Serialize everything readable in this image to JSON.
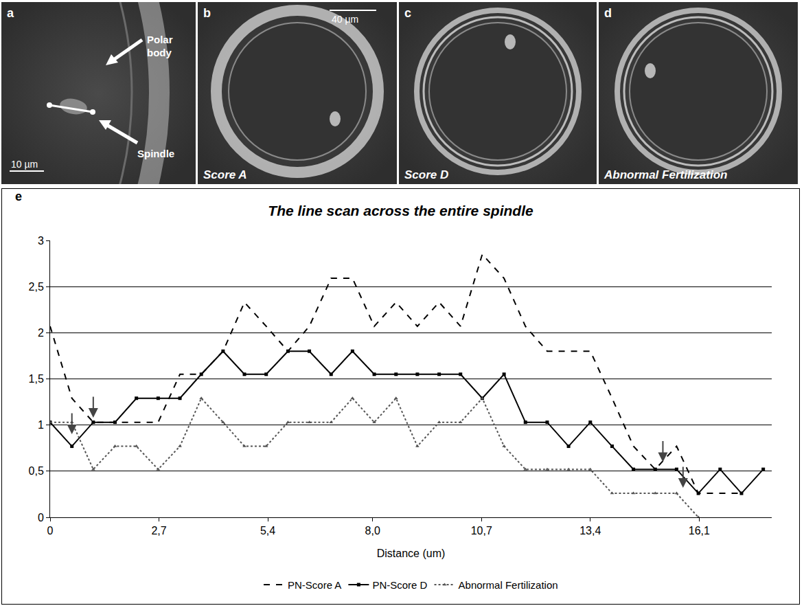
{
  "figure": {
    "panels": [
      {
        "letter": "a",
        "labels": [
          "Polar body",
          "Spindle"
        ],
        "scale_bar": "10 µm"
      },
      {
        "letter": "b",
        "caption": "Score A",
        "scale_bar": "40 µm"
      },
      {
        "letter": "c",
        "caption": "Score D"
      },
      {
        "letter": "d",
        "caption": "Abnormal Fertilization"
      }
    ],
    "chart_letter": "e"
  },
  "chart_data": {
    "type": "line",
    "title": "The line scan across the entire spindle",
    "x_label": "Distance (um)",
    "x": [
      0,
      0.54,
      1.07,
      1.61,
      2.14,
      2.68,
      3.22,
      3.75,
      4.29,
      4.82,
      5.36,
      5.9,
      6.43,
      6.97,
      7.5,
      8.04,
      8.58,
      9.11,
      9.65,
      10.18,
      10.72,
      11.26,
      11.79,
      12.33,
      12.86,
      13.4,
      13.94,
      14.47,
      15.01,
      15.54,
      16.08,
      16.62,
      17.15,
      17.69
    ],
    "series": [
      {
        "name": "PN-Score A",
        "color": "#000000",
        "line_style": "dash",
        "marker": "none",
        "values": [
          2.07,
          1.29,
          1.03,
          1.03,
          1.03,
          1.03,
          1.55,
          1.55,
          1.8,
          2.33,
          2.07,
          1.8,
          2.07,
          2.59,
          2.59,
          2.07,
          2.33,
          2.07,
          2.33,
          2.07,
          2.85,
          2.59,
          2.07,
          1.8,
          1.8,
          1.8,
          1.29,
          0.77,
          0.52,
          0.77,
          0.26,
          0.26,
          0.26,
          null
        ]
      },
      {
        "name": "PN-Score D",
        "color": "#000000",
        "line_style": "solid",
        "marker": "square",
        "values": [
          1.03,
          0.77,
          1.03,
          1.03,
          1.29,
          1.29,
          1.29,
          1.55,
          1.8,
          1.55,
          1.55,
          1.8,
          1.8,
          1.55,
          1.8,
          1.55,
          1.55,
          1.55,
          1.55,
          1.55,
          1.29,
          1.55,
          1.03,
          1.03,
          0.77,
          1.03,
          0.77,
          0.52,
          0.52,
          0.52,
          0.26,
          0.52,
          0.26,
          0.52
        ]
      },
      {
        "name": "Abnormal Fertilization",
        "color": "#555555",
        "line_style": "dot",
        "marker": "triangle-up",
        "values": [
          1.03,
          1.03,
          0.52,
          0.77,
          0.77,
          0.52,
          0.77,
          1.29,
          1.03,
          0.77,
          0.77,
          1.03,
          1.03,
          1.03,
          1.29,
          1.03,
          1.29,
          0.77,
          1.03,
          1.03,
          1.29,
          0.77,
          0.52,
          0.52,
          0.52,
          0.52,
          0.26,
          0.26,
          0.26,
          0.26,
          0,
          null,
          null,
          null
        ]
      }
    ],
    "arrows": [
      {
        "x": 0.54,
        "y": 0.9
      },
      {
        "x": 1.07,
        "y": 1.08
      },
      {
        "x": 15.2,
        "y": 0.6
      },
      {
        "x": 15.7,
        "y": 0.32
      }
    ],
    "xlim": [
      0,
      17.9
    ],
    "xticks": [
      0,
      {
        "value": 2.7,
        "label": "2,7"
      },
      {
        "value": 5.4,
        "label": "5,4"
      },
      {
        "value": 8.0,
        "label": "8,0"
      },
      {
        "value": 10.7,
        "label": "10,7"
      },
      {
        "value": 13.4,
        "label": "13,4"
      },
      {
        "value": 16.1,
        "label": "16,1"
      }
    ],
    "ylim": [
      0,
      3
    ],
    "yticks": [
      0,
      {
        "value": 0.5,
        "label": "0,5"
      },
      1,
      {
        "value": 1.5,
        "label": "1,5"
      },
      2,
      {
        "value": 2.5,
        "label": "2,5"
      },
      3
    ],
    "grid": true,
    "legend": "bottom"
  }
}
